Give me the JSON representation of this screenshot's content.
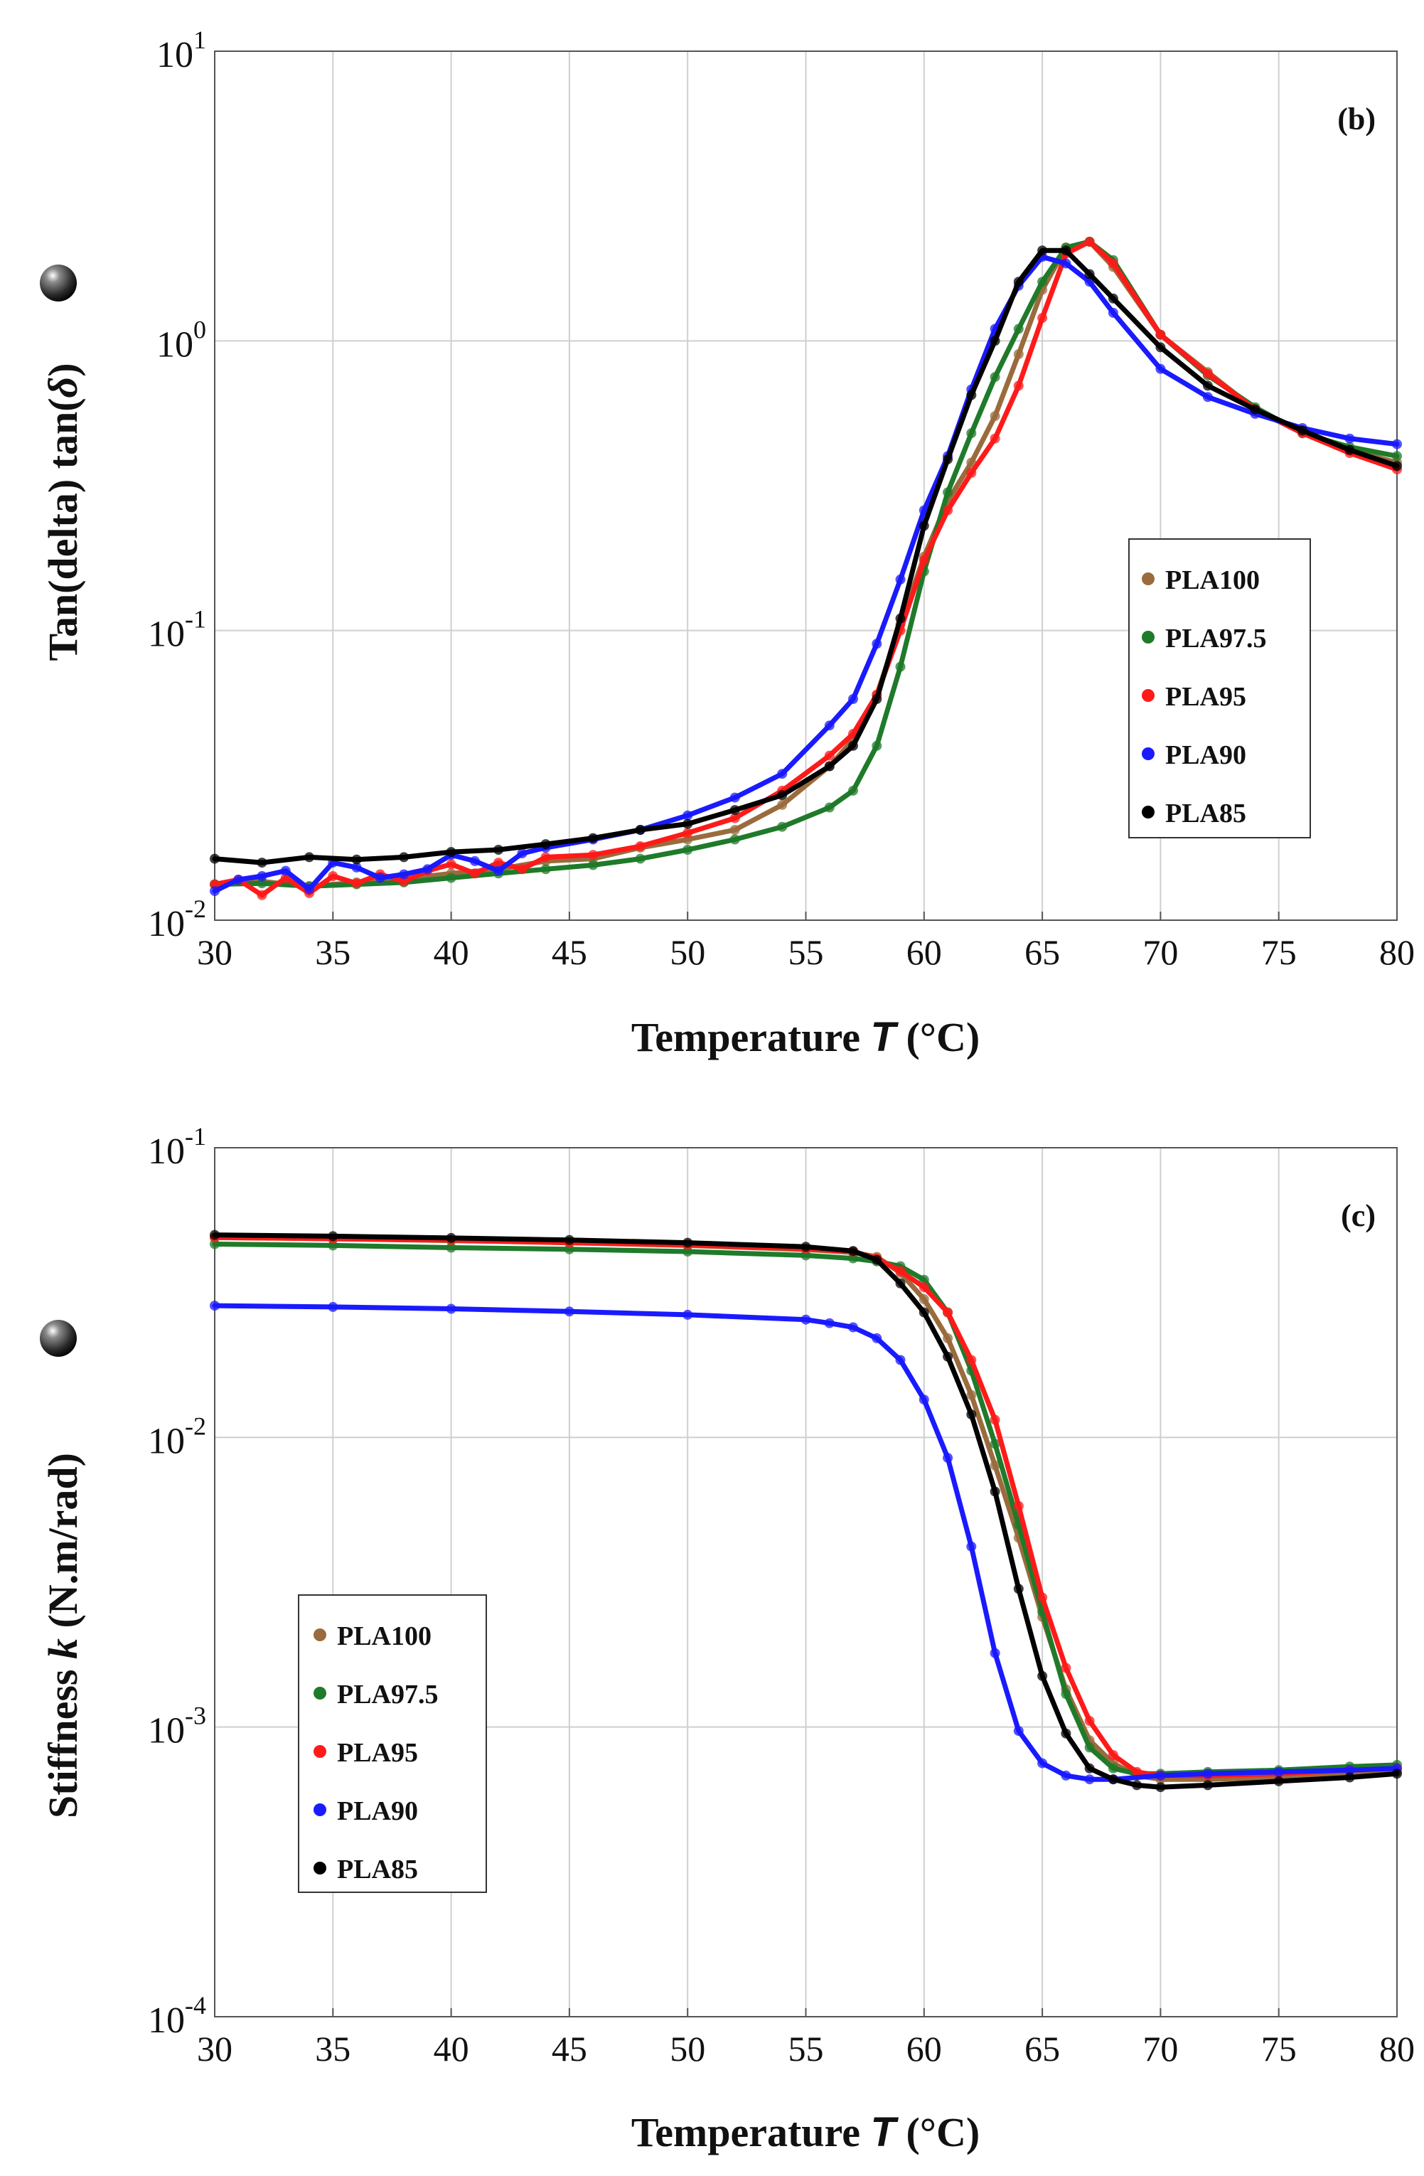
{
  "chart_data": [
    {
      "type": "line",
      "panel_label": "(b)",
      "ylabel_prefix": "Tan(delta) tan(",
      "ylabel_delta": "δ",
      "ylabel_suffix": ")",
      "xlabel_main": "Temperature ",
      "xlabel_var": "T",
      "xlabel_unit": " (°C)",
      "xlim": [
        30,
        80
      ],
      "ylim": [
        0.01,
        10
      ],
      "yscale": "log",
      "grid": true,
      "legend_position": "right-middle",
      "xticks": [
        "30",
        "35",
        "40",
        "45",
        "50",
        "55",
        "60",
        "65",
        "70",
        "75",
        "80"
      ],
      "yticks": [
        {
          "base": "10",
          "exp": "1"
        },
        {
          "base": "10",
          "exp": "0"
        },
        {
          "base": "10",
          "exp": "-1"
        },
        {
          "base": "10",
          "exp": "-2"
        }
      ],
      "series": [
        {
          "name": "PLA100",
          "color": "#9a6b3c",
          "x": [
            30,
            32,
            34,
            36,
            38,
            40,
            42,
            44,
            46,
            48,
            50,
            52,
            54,
            56,
            57,
            58,
            59,
            60,
            61,
            62,
            63,
            64,
            65,
            66,
            67,
            68,
            70,
            72,
            74,
            76,
            78,
            80
          ],
          "y": [
            0.0133,
            0.0136,
            0.0131,
            0.0135,
            0.0139,
            0.0145,
            0.015,
            0.016,
            0.0163,
            0.0178,
            0.019,
            0.0205,
            0.025,
            0.034,
            0.042,
            0.06,
            0.105,
            0.18,
            0.28,
            0.38,
            0.55,
            0.9,
            1.5,
            2.1,
            2.2,
            1.8,
            1.05,
            0.78,
            0.58,
            0.49,
            0.42,
            0.38
          ]
        },
        {
          "name": "PLA97.5",
          "color": "#1f7a2a",
          "x": [
            30,
            32,
            34,
            36,
            38,
            40,
            42,
            44,
            46,
            48,
            50,
            52,
            54,
            56,
            57,
            58,
            59,
            60,
            61,
            62,
            63,
            64,
            65,
            66,
            67,
            68,
            70,
            72,
            74,
            76,
            78,
            80
          ],
          "y": [
            0.0133,
            0.0134,
            0.0131,
            0.0133,
            0.0135,
            0.014,
            0.0145,
            0.015,
            0.0155,
            0.0163,
            0.0175,
            0.019,
            0.021,
            0.0245,
            0.028,
            0.04,
            0.075,
            0.16,
            0.3,
            0.48,
            0.75,
            1.1,
            1.6,
            2.1,
            2.2,
            1.9,
            1.05,
            0.76,
            0.59,
            0.48,
            0.43,
            0.4
          ]
        },
        {
          "name": "PLA95",
          "color": "#ff1a1a",
          "x": [
            30,
            31,
            32,
            33,
            34,
            35,
            36,
            37,
            38,
            39,
            40,
            41,
            42,
            43,
            44,
            46,
            48,
            50,
            52,
            54,
            56,
            57,
            58,
            59,
            60,
            61,
            62,
            63,
            64,
            65,
            66,
            67,
            68,
            70,
            72,
            74,
            76,
            78,
            80
          ],
          "y": [
            0.0133,
            0.0138,
            0.0122,
            0.014,
            0.0124,
            0.0142,
            0.0134,
            0.0144,
            0.0136,
            0.0148,
            0.0156,
            0.0145,
            0.0158,
            0.015,
            0.0165,
            0.0168,
            0.018,
            0.02,
            0.0225,
            0.028,
            0.037,
            0.044,
            0.06,
            0.1,
            0.175,
            0.26,
            0.35,
            0.46,
            0.7,
            1.2,
            2.0,
            2.2,
            1.85,
            1.05,
            0.77,
            0.58,
            0.48,
            0.41,
            0.36
          ]
        },
        {
          "name": "PLA90",
          "color": "#1a1aff",
          "x": [
            30,
            31,
            32,
            33,
            34,
            35,
            36,
            37,
            38,
            39,
            40,
            41,
            42,
            43,
            44,
            46,
            48,
            50,
            52,
            54,
            56,
            57,
            58,
            59,
            60,
            61,
            62,
            63,
            64,
            65,
            66,
            67,
            68,
            70,
            72,
            74,
            76,
            78,
            80
          ],
          "y": [
            0.0126,
            0.0138,
            0.0142,
            0.0148,
            0.0128,
            0.0158,
            0.0152,
            0.014,
            0.0144,
            0.015,
            0.0168,
            0.016,
            0.0148,
            0.017,
            0.0178,
            0.019,
            0.0205,
            0.023,
            0.0265,
            0.032,
            0.047,
            0.058,
            0.09,
            0.15,
            0.26,
            0.4,
            0.68,
            1.1,
            1.55,
            1.95,
            1.85,
            1.6,
            1.25,
            0.8,
            0.64,
            0.56,
            0.5,
            0.46,
            0.44
          ]
        },
        {
          "name": "PLA85",
          "color": "#000000",
          "x": [
            30,
            32,
            34,
            36,
            38,
            40,
            42,
            44,
            46,
            48,
            50,
            52,
            54,
            56,
            57,
            58,
            59,
            60,
            61,
            62,
            63,
            64,
            65,
            66,
            67,
            68,
            70,
            72,
            74,
            76,
            78,
            80
          ],
          "y": [
            0.0163,
            0.0158,
            0.0165,
            0.0162,
            0.0165,
            0.0172,
            0.0175,
            0.0183,
            0.0192,
            0.0205,
            0.0215,
            0.024,
            0.027,
            0.034,
            0.04,
            0.058,
            0.11,
            0.23,
            0.39,
            0.65,
            1.0,
            1.6,
            2.05,
            2.05,
            1.7,
            1.4,
            0.95,
            0.7,
            0.58,
            0.49,
            0.42,
            0.37
          ]
        }
      ]
    },
    {
      "type": "line",
      "panel_label": "(c)",
      "ylabel_main": "Stiffness ",
      "ylabel_var": "k",
      "ylabel_unit": " (N.m/rad)",
      "xlabel_main": "Temperature ",
      "xlabel_var": "T",
      "xlabel_unit": " (°C)",
      "xlim": [
        30,
        80
      ],
      "ylim": [
        0.0001,
        0.1
      ],
      "yscale": "log",
      "grid": true,
      "legend_position": "left-bottom",
      "xticks": [
        "30",
        "35",
        "40",
        "45",
        "50",
        "55",
        "60",
        "65",
        "70",
        "75",
        "80"
      ],
      "yticks": [
        {
          "base": "10",
          "exp": "-1"
        },
        {
          "base": "10",
          "exp": "-2"
        },
        {
          "base": "10",
          "exp": "-3"
        },
        {
          "base": "10",
          "exp": "-4"
        }
      ],
      "series": [
        {
          "name": "PLA100",
          "color": "#9a6b3c",
          "x": [
            30,
            35,
            40,
            45,
            50,
            55,
            57,
            58,
            59,
            60,
            61,
            62,
            63,
            64,
            65,
            66,
            67,
            68,
            69,
            70,
            72,
            75,
            78,
            80
          ],
          "y": [
            0.049,
            0.0485,
            0.0478,
            0.047,
            0.046,
            0.0445,
            0.0435,
            0.042,
            0.037,
            0.03,
            0.022,
            0.014,
            0.008,
            0.0045,
            0.0024,
            0.00135,
            0.0009,
            0.00075,
            0.00068,
            0.00066,
            0.00066,
            0.00067,
            0.00069,
            0.0007
          ]
        },
        {
          "name": "PLA97.5",
          "color": "#1f7a2a",
          "x": [
            30,
            35,
            40,
            45,
            50,
            55,
            57,
            58,
            59,
            60,
            61,
            62,
            63,
            64,
            65,
            66,
            67,
            68,
            69,
            70,
            72,
            75,
            78,
            80
          ],
          "y": [
            0.0465,
            0.046,
            0.0452,
            0.0446,
            0.0438,
            0.0425,
            0.0415,
            0.0405,
            0.039,
            0.035,
            0.027,
            0.017,
            0.0095,
            0.005,
            0.0025,
            0.0013,
            0.00085,
            0.00072,
            0.00069,
            0.00069,
            0.0007,
            0.00071,
            0.00073,
            0.00074
          ]
        },
        {
          "name": "PLA95",
          "color": "#ff1a1a",
          "x": [
            30,
            35,
            40,
            45,
            50,
            55,
            57,
            58,
            59,
            60,
            61,
            62,
            63,
            64,
            65,
            66,
            67,
            68,
            69,
            70,
            72,
            75,
            78,
            80
          ],
          "y": [
            0.049,
            0.0485,
            0.048,
            0.047,
            0.0462,
            0.0448,
            0.0438,
            0.0415,
            0.0375,
            0.033,
            0.027,
            0.0185,
            0.0115,
            0.0058,
            0.0028,
            0.0016,
            0.00105,
            0.0008,
            0.0007,
            0.00068,
            0.00068,
            0.00069,
            0.00071,
            0.00072
          ]
        },
        {
          "name": "PLA90",
          "color": "#1a1aff",
          "x": [
            30,
            35,
            40,
            45,
            50,
            55,
            56,
            57,
            58,
            59,
            60,
            61,
            62,
            63,
            64,
            65,
            66,
            67,
            68,
            70,
            72,
            75,
            78,
            80
          ],
          "y": [
            0.0285,
            0.0282,
            0.0278,
            0.0272,
            0.0265,
            0.0255,
            0.0248,
            0.024,
            0.022,
            0.0185,
            0.0135,
            0.0085,
            0.0042,
            0.0018,
            0.00097,
            0.00075,
            0.00068,
            0.00066,
            0.00066,
            0.00068,
            0.00069,
            0.0007,
            0.00071,
            0.00072
          ]
        },
        {
          "name": "PLA85",
          "color": "#000000",
          "x": [
            30,
            35,
            40,
            45,
            50,
            55,
            57,
            58,
            59,
            60,
            61,
            62,
            63,
            64,
            65,
            66,
            67,
            68,
            69,
            70,
            72,
            75,
            78,
            80
          ],
          "y": [
            0.05,
            0.0495,
            0.0488,
            0.048,
            0.047,
            0.0455,
            0.044,
            0.041,
            0.034,
            0.027,
            0.019,
            0.012,
            0.0065,
            0.003,
            0.0015,
            0.00095,
            0.00072,
            0.00066,
            0.00063,
            0.00062,
            0.00063,
            0.00065,
            0.00067,
            0.00069
          ]
        }
      ]
    }
  ]
}
